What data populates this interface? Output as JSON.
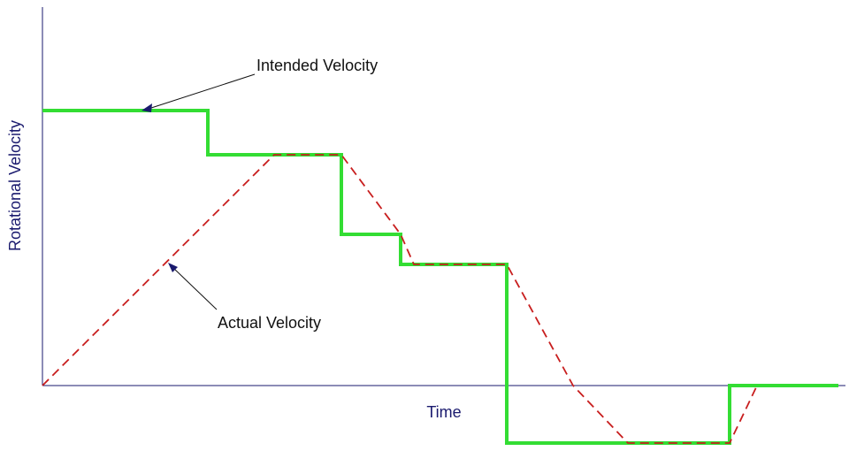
{
  "chart_data": {
    "type": "line",
    "xlabel": "Time",
    "ylabel": "Rotational Velocity",
    "xlim": [
      0,
      900
    ],
    "ylim": [
      -65,
      390
    ],
    "grid": false,
    "series": [
      {
        "name": "Intended Velocity",
        "color": "#33dd33",
        "style": "solid-thick",
        "x": [
          0,
          187,
          187,
          338,
          338,
          405,
          405,
          525,
          525,
          777,
          777,
          900
        ],
        "y": [
          311,
          311,
          261,
          261,
          171,
          171,
          137,
          137,
          -65,
          -65,
          0,
          0
        ]
      },
      {
        "name": "Actual Velocity",
        "color": "#c81e1e",
        "style": "dashed",
        "x": [
          0,
          262,
          338,
          405,
          420,
          525,
          600,
          662,
          777,
          808
        ],
        "y": [
          0,
          261,
          261,
          171,
          137,
          137,
          0,
          -65,
          -65,
          0
        ]
      }
    ],
    "annotations": [
      {
        "text": "Intended Velocity",
        "target_series": "Intended Velocity"
      },
      {
        "text": "Actual Velocity",
        "target_series": "Actual Velocity"
      }
    ]
  }
}
